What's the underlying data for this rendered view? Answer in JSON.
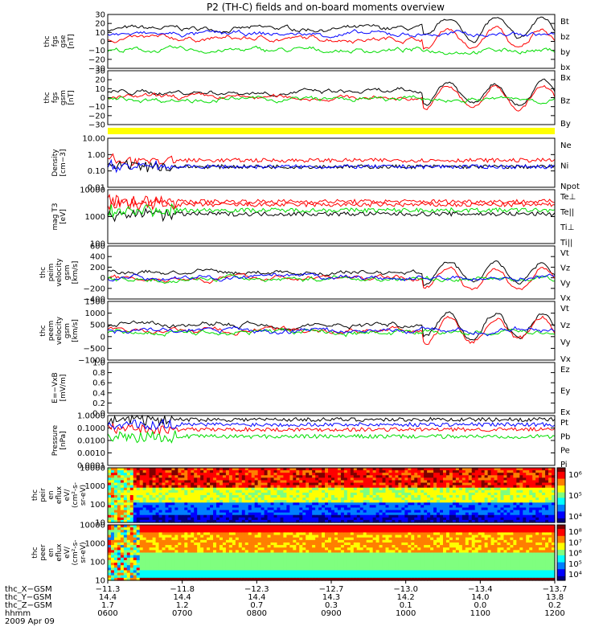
{
  "title": "P2 (TH-C) fields and on-board moments overview",
  "colors": {
    "black": "#000000",
    "red": "#ff0000",
    "green": "#00dd00",
    "blue": "#0000ff",
    "yellow": "#ffff00"
  },
  "chart_data": [
    {
      "type": "line",
      "panel": "fgs_gse",
      "ylabel_lines": [
        "thc",
        "fgs",
        "gse",
        "[nT]"
      ],
      "ylim": [
        -30,
        30
      ],
      "yticks": [
        "30",
        "20",
        "10",
        "0",
        "−10",
        "−20",
        "−30"
      ],
      "series": [
        {
          "name": "Bt",
          "color": "black"
        },
        {
          "name": "bz",
          "color": "red"
        },
        {
          "name": "by",
          "color": "green"
        },
        {
          "name": "bx",
          "color": "blue"
        }
      ]
    },
    {
      "type": "line",
      "panel": "fgs_gsm",
      "ylabel_lines": [
        "thc",
        "fgs",
        "gsm",
        "[nT]"
      ],
      "ylim": [
        -30,
        30
      ],
      "yticks": [
        "30",
        "20",
        "10",
        "0",
        "−10",
        "−20",
        "−30"
      ],
      "series": [
        {
          "name": "Bx",
          "color": "black"
        },
        {
          "name": "Bz",
          "color": "red"
        },
        {
          "name": "By",
          "color": "green"
        }
      ]
    },
    {
      "type": "line",
      "panel": "density",
      "ylabel_lines": [
        "Density",
        "[cm−3]"
      ],
      "scale": "log",
      "ylim": [
        0.01,
        10.0
      ],
      "yticks": [
        "10.00",
        "1.00",
        "0.10",
        "0.01"
      ],
      "series": [
        {
          "name": "Ne",
          "color": "red"
        },
        {
          "name": "Ni",
          "color": "black"
        },
        {
          "name": "Npot",
          "color": "blue"
        }
      ]
    },
    {
      "type": "line",
      "panel": "temperature",
      "ylabel_lines": [
        "mag T3",
        "[eV]"
      ],
      "scale": "log",
      "ylim": [
        50,
        12000
      ],
      "yticks": [
        "10000",
        "1000",
        "100"
      ],
      "series": [
        {
          "name": "Te⊥",
          "color": "red"
        },
        {
          "name": "Te||",
          "color": "black"
        },
        {
          "name": "Ti⊥",
          "color": "red"
        },
        {
          "name": "Ti||",
          "color": "green"
        }
      ]
    },
    {
      "type": "line",
      "panel": "peim_velocity",
      "ylabel_lines": [
        "thc",
        "peim",
        "velocity",
        "gsm",
        "[km/s]"
      ],
      "ylim": [
        -400,
        600
      ],
      "yticks": [
        "600",
        "400",
        "200",
        "0",
        "−200",
        "−400"
      ],
      "series": [
        {
          "name": "Vt",
          "color": "black"
        },
        {
          "name": "Vz",
          "color": "red"
        },
        {
          "name": "Vy",
          "color": "green"
        },
        {
          "name": "Vx",
          "color": "blue"
        }
      ]
    },
    {
      "type": "line",
      "panel": "peem_velocity",
      "ylabel_lines": [
        "thc",
        "peem",
        "velocity",
        "gsm",
        "[km/s]"
      ],
      "ylim": [
        -1500,
        1500
      ],
      "yticks": [
        "1500",
        "1000",
        "500",
        "0",
        "−500",
        "−1000"
      ],
      "series": [
        {
          "name": "Vt",
          "color": "black"
        },
        {
          "name": "Vz",
          "color": "red"
        },
        {
          "name": "Vy",
          "color": "green"
        },
        {
          "name": "Vx",
          "color": "blue"
        }
      ]
    },
    {
      "type": "line",
      "panel": "efield",
      "ylabel_lines": [
        "E=−VxB",
        "[mV/m]"
      ],
      "ylim": [
        0,
        1
      ],
      "yticks": [
        "1.0",
        "0.8",
        "0.6",
        "0.4",
        "0.2",
        "0.0"
      ],
      "series": [
        {
          "name": "Ez",
          "color": "red"
        },
        {
          "name": "Ey",
          "color": "green"
        },
        {
          "name": "Ex",
          "color": "blue"
        }
      ]
    },
    {
      "type": "line",
      "panel": "pressure",
      "ylabel_lines": [
        "Pressure",
        "[nPa]"
      ],
      "scale": "log",
      "ylim": [
        0.0001,
        1.0
      ],
      "yticks": [
        "1.0000",
        "0.1000",
        "0.0100",
        "0.0010",
        "0.0001"
      ],
      "series": [
        {
          "name": "Pt",
          "color": "black"
        },
        {
          "name": "Pb",
          "color": "red"
        },
        {
          "name": "Pe",
          "color": "green"
        },
        {
          "name": "Pi",
          "color": "blue"
        }
      ]
    },
    {
      "type": "heatmap",
      "panel": "peir_spectrogram",
      "ylabel_lines": [
        "thc",
        "peir",
        "en",
        "eflux",
        "eV/",
        "(cm²-s-",
        "sr-eV)"
      ],
      "scale": "log",
      "ylim": [
        10,
        10000
      ],
      "yticks": [
        "10000",
        "1000",
        "100",
        "10"
      ],
      "colorbar": {
        "min_exp": 3,
        "max_exp": 6,
        "ticks": [
          "10⁶",
          "10⁵",
          "10⁴"
        ]
      }
    },
    {
      "type": "heatmap",
      "panel": "peer_spectrogram",
      "ylabel_lines": [
        "thc",
        "peer",
        "en",
        "eflux",
        "eV/",
        "(cm²-s-",
        "sr-eV)"
      ],
      "scale": "log",
      "ylim": [
        10,
        10000
      ],
      "yticks": [
        "10000",
        "1000",
        "100",
        "10"
      ],
      "colorbar": {
        "min_exp": 3,
        "max_exp": 8,
        "ticks": [
          "10⁸",
          "10⁷",
          "10⁶",
          "10⁵",
          "10⁴"
        ]
      }
    }
  ],
  "time_axis": {
    "row_labels": [
      "thc_X−GSM",
      "thc_Y−GSM",
      "thc_Z−GSM",
      "hhmm"
    ],
    "ticks": [
      {
        "x": "−11.3",
        "y": "14.4",
        "z": "1.7",
        "hhmm": "0600"
      },
      {
        "x": "−11.8",
        "y": "14.4",
        "z": "1.2",
        "hhmm": "0700"
      },
      {
        "x": "−12.3",
        "y": "14.4",
        "z": "0.7",
        "hhmm": "0800"
      },
      {
        "x": "−12.7",
        "y": "14.3",
        "z": "0.3",
        "hhmm": "0900"
      },
      {
        "x": "−13.0",
        "y": "14.2",
        "z": "0.1",
        "hhmm": "1000"
      },
      {
        "x": "−13.4",
        "y": "14.0",
        "z": "0.0",
        "hhmm": "1100"
      },
      {
        "x": "−13.7",
        "y": "13.8",
        "z": "0.2",
        "hhmm": "1200"
      }
    ],
    "date": "2009 Apr 09"
  }
}
